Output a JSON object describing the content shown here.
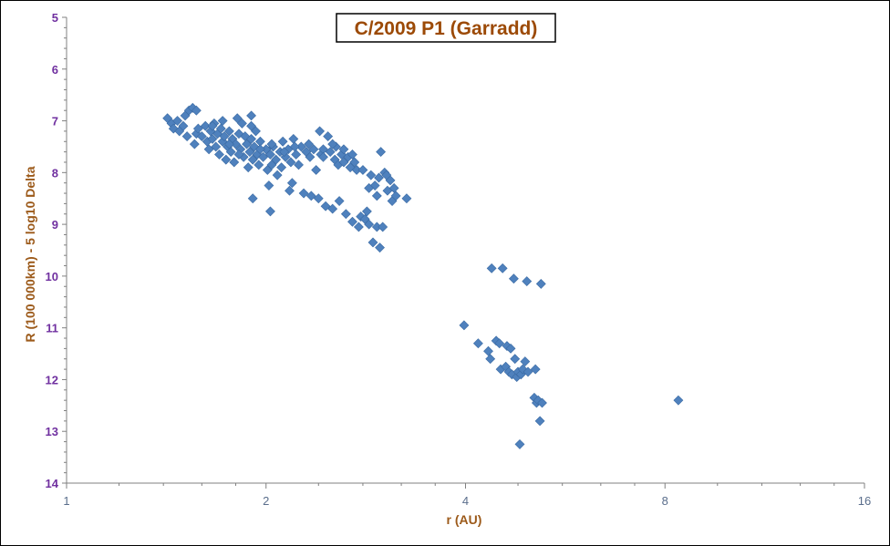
{
  "chart_data": {
    "type": "scatter",
    "title": "C/2009 P1 (Garradd)",
    "xlabel": "r (AU)",
    "ylabel": "R (100 000km) - 5 log10 Delta",
    "x_scale": "log2",
    "xlim": [
      1,
      16
    ],
    "ylim": [
      5,
      14
    ],
    "y_inverted": true,
    "x_ticks": [
      1,
      2,
      4,
      8,
      16
    ],
    "y_ticks": [
      5,
      6,
      7,
      8,
      9,
      10,
      11,
      12,
      13,
      14
    ],
    "grid": false,
    "legend": "none",
    "marker": "diamond",
    "marker_color": "#4f81bd",
    "series": [
      {
        "points": [
          [
            1.42,
            6.95
          ],
          [
            1.44,
            7.05
          ],
          [
            1.45,
            7.15
          ],
          [
            1.47,
            7.0
          ],
          [
            1.48,
            7.2
          ],
          [
            1.5,
            7.1
          ],
          [
            1.51,
            6.9
          ],
          [
            1.52,
            7.3
          ],
          [
            1.53,
            6.8
          ],
          [
            1.55,
            6.75
          ],
          [
            1.56,
            7.45
          ],
          [
            1.57,
            7.25
          ],
          [
            1.58,
            7.15
          ],
          [
            1.6,
            7.3
          ],
          [
            1.62,
            7.1
          ],
          [
            1.63,
            7.4
          ],
          [
            1.64,
            7.55
          ],
          [
            1.65,
            7.2
          ],
          [
            1.66,
            7.35
          ],
          [
            1.67,
            7.05
          ],
          [
            1.68,
            7.5
          ],
          [
            1.69,
            7.25
          ],
          [
            1.7,
            7.65
          ],
          [
            1.71,
            7.15
          ],
          [
            1.72,
            7.4
          ],
          [
            1.73,
            7.3
          ],
          [
            1.74,
            7.75
          ],
          [
            1.75,
            7.5
          ],
          [
            1.76,
            7.2
          ],
          [
            1.77,
            7.6
          ],
          [
            1.78,
            7.35
          ],
          [
            1.79,
            7.8
          ],
          [
            1.8,
            7.45
          ],
          [
            1.81,
            6.95
          ],
          [
            1.82,
            7.25
          ],
          [
            1.83,
            7.55
          ],
          [
            1.84,
            7.05
          ],
          [
            1.85,
            7.7
          ],
          [
            1.86,
            7.3
          ],
          [
            1.87,
            7.45
          ],
          [
            1.88,
            7.9
          ],
          [
            1.89,
            7.6
          ],
          [
            1.9,
            6.9
          ],
          [
            1.9,
            7.35
          ],
          [
            1.91,
            7.75
          ],
          [
            1.92,
            7.5
          ],
          [
            1.93,
            7.2
          ],
          [
            1.94,
            7.65
          ],
          [
            1.95,
            7.85
          ],
          [
            1.96,
            7.4
          ],
          [
            1.98,
            7.7
          ],
          [
            2.0,
            7.55
          ],
          [
            2.01,
            7.95
          ],
          [
            2.02,
            8.25
          ],
          [
            2.03,
            7.65
          ],
          [
            2.04,
            7.85
          ],
          [
            2.05,
            7.5
          ],
          [
            2.07,
            7.75
          ],
          [
            2.08,
            8.05
          ],
          [
            2.1,
            7.6
          ],
          [
            2.11,
            7.9
          ],
          [
            2.12,
            7.4
          ],
          [
            2.14,
            7.7
          ],
          [
            2.16,
            7.55
          ],
          [
            2.17,
            8.35
          ],
          [
            2.18,
            7.8
          ],
          [
            2.19,
            8.2
          ],
          [
            2.2,
            7.35
          ],
          [
            2.22,
            7.65
          ],
          [
            2.24,
            7.85
          ],
          [
            2.26,
            7.5
          ],
          [
            2.28,
            8.4
          ],
          [
            2.3,
            7.6
          ],
          [
            2.32,
            7.45
          ],
          [
            2.34,
            8.45
          ],
          [
            2.36,
            7.55
          ],
          [
            2.38,
            7.95
          ],
          [
            2.4,
            8.5
          ],
          [
            2.41,
            7.2
          ],
          [
            2.42,
            7.65
          ],
          [
            2.44,
            7.55
          ],
          [
            2.46,
            8.65
          ],
          [
            2.48,
            7.3
          ],
          [
            2.5,
            7.6
          ],
          [
            2.52,
            8.7
          ],
          [
            2.54,
            7.75
          ],
          [
            2.55,
            7.5
          ],
          [
            2.57,
            7.85
          ],
          [
            2.58,
            8.55
          ],
          [
            2.6,
            7.65
          ],
          [
            2.62,
            7.8
          ],
          [
            2.64,
            8.8
          ],
          [
            2.66,
            7.7
          ],
          [
            2.68,
            7.9
          ],
          [
            2.7,
            8.95
          ],
          [
            2.72,
            7.8
          ],
          [
            2.74,
            7.95
          ],
          [
            2.76,
            9.05
          ],
          [
            2.78,
            8.85
          ],
          [
            2.8,
            7.95
          ],
          [
            2.82,
            8.9
          ],
          [
            2.84,
            8.75
          ],
          [
            2.86,
            9.0
          ],
          [
            2.88,
            8.05
          ],
          [
            2.9,
            9.35
          ],
          [
            2.92,
            8.25
          ],
          [
            2.94,
            9.05
          ],
          [
            2.96,
            8.1
          ],
          [
            2.97,
            9.45
          ],
          [
            2.98,
            7.6
          ],
          [
            3.0,
            9.05
          ],
          [
            3.02,
            8.0
          ],
          [
            3.05,
            8.35
          ],
          [
            3.08,
            8.15
          ],
          [
            3.1,
            8.55
          ],
          [
            3.12,
            8.3
          ],
          [
            3.14,
            8.45
          ],
          [
            3.26,
            8.5
          ],
          [
            1.57,
            6.8
          ],
          [
            1.66,
            7.1
          ],
          [
            1.72,
            7.0
          ],
          [
            1.76,
            7.45
          ],
          [
            1.82,
            7.65
          ],
          [
            1.9,
            7.1
          ],
          [
            1.96,
            7.55
          ],
          [
            2.04,
            7.45
          ],
          [
            2.13,
            7.6
          ],
          [
            2.21,
            7.5
          ],
          [
            2.33,
            7.7
          ],
          [
            2.44,
            7.7
          ],
          [
            2.52,
            7.45
          ],
          [
            2.62,
            7.55
          ],
          [
            2.7,
            7.65
          ],
          [
            2.86,
            8.3
          ],
          [
            2.94,
            8.45
          ],
          [
            3.04,
            8.05
          ],
          [
            1.91,
            8.5
          ],
          [
            2.03,
            8.75
          ],
          [
            3.98,
            10.95
          ],
          [
            4.18,
            11.3
          ],
          [
            4.33,
            11.45
          ],
          [
            4.36,
            11.6
          ],
          [
            4.38,
            9.85
          ],
          [
            4.45,
            11.25
          ],
          [
            4.5,
            11.3
          ],
          [
            4.52,
            11.8
          ],
          [
            4.55,
            9.85
          ],
          [
            4.6,
            11.75
          ],
          [
            4.62,
            11.35
          ],
          [
            4.65,
            11.85
          ],
          [
            4.68,
            11.4
          ],
          [
            4.7,
            11.9
          ],
          [
            4.73,
            10.05
          ],
          [
            4.75,
            11.6
          ],
          [
            4.78,
            11.95
          ],
          [
            4.8,
            11.85
          ],
          [
            4.83,
            13.25
          ],
          [
            4.85,
            11.9
          ],
          [
            4.88,
            11.8
          ],
          [
            4.92,
            11.65
          ],
          [
            4.95,
            10.1
          ],
          [
            4.97,
            11.85
          ],
          [
            5.08,
            12.35
          ],
          [
            5.1,
            11.8
          ],
          [
            5.12,
            12.45
          ],
          [
            5.15,
            12.4
          ],
          [
            5.18,
            12.8
          ],
          [
            5.2,
            10.15
          ],
          [
            5.22,
            12.45
          ],
          [
            8.38,
            12.4
          ]
        ]
      }
    ]
  }
}
